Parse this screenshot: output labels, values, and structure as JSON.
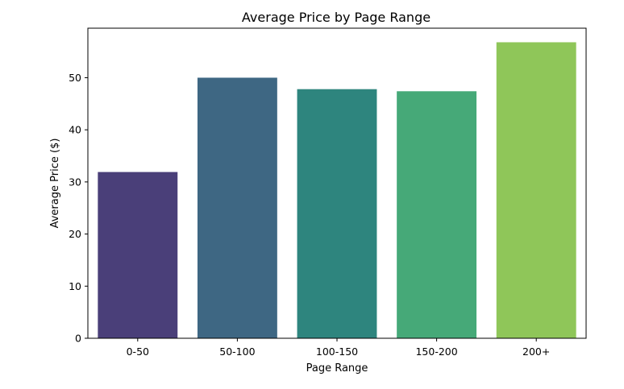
{
  "chart_data": {
    "type": "bar",
    "title": "Average Price by Page Range",
    "xlabel": "Page Range",
    "ylabel": "Average Price ($)",
    "categories": [
      "0-50",
      "50-100",
      "100-150",
      "150-200",
      "200+"
    ],
    "values": [
      31.9,
      50.0,
      47.8,
      47.4,
      56.8
    ],
    "colors": [
      "#4a3f79",
      "#3e6783",
      "#2e857e",
      "#46a978",
      "#8fc659"
    ],
    "ylim": [
      0,
      59.5
    ],
    "yticks": [
      0,
      10,
      20,
      30,
      40,
      50
    ],
    "grid": false,
    "legend": "none"
  }
}
